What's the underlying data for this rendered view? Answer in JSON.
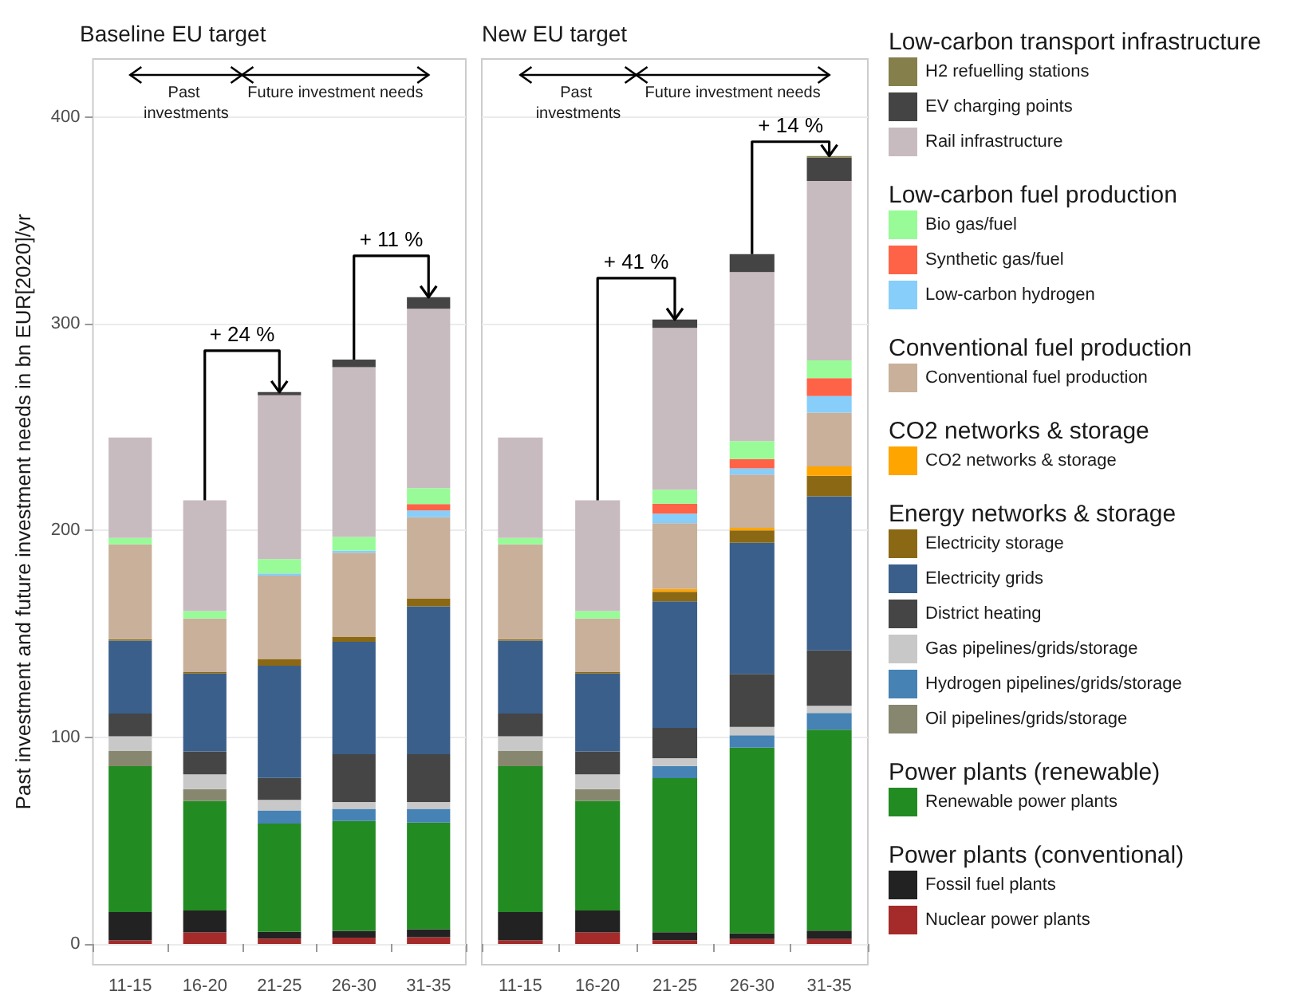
{
  "chart_data": [
    {
      "type": "bar",
      "title": "Baseline EU target",
      "ylabel": "Past investment and future investment needs in bn EUR[2020]/yr",
      "categories": [
        "11-15",
        "16-20",
        "21-25",
        "26-30",
        "31-35"
      ],
      "stacked": true,
      "ylim": [
        -10,
        428
      ],
      "yticks": [
        0,
        100,
        200,
        300,
        400
      ],
      "grid": true,
      "legend": false,
      "annotations": [
        "Past investments",
        "Future investment needs",
        {
          "text": "+ 24 %",
          "x": "21-25",
          "y": 266.9
        },
        {
          "text": "+ 11 %",
          "x": "31-35",
          "y": 312.8
        }
      ],
      "series": [
        {
          "color": "#a52a2a",
          "values": [
            1.8,
            5.6,
            2.6,
            3.1,
            3.3
          ]
        },
        {
          "color": "#222222",
          "values": [
            13.6,
            10.6,
            3.3,
            3.3,
            3.9
          ]
        },
        {
          "color": "#228b22",
          "values": [
            70.6,
            53,
            52.3,
            53.1,
            51.5
          ]
        },
        {
          "color": "#878770",
          "values": [
            7.3,
            5.7,
            0,
            0,
            0
          ]
        },
        {
          "color": "#4682b4",
          "values": [
            0,
            0,
            6.4,
            5.9,
            6.7
          ]
        },
        {
          "color": "#c8c8c8",
          "values": [
            7.2,
            7.2,
            5.1,
            3.3,
            3.3
          ]
        },
        {
          "color": "#454545",
          "values": [
            11,
            11,
            10.6,
            23.1,
            23.1
          ]
        },
        {
          "color": "#3a5f8a",
          "values": [
            35.2,
            37.7,
            54.3,
            54.4,
            71.5
          ]
        },
        {
          "color": "#8b6914",
          "values": [
            0.7,
            0.7,
            3.3,
            2.5,
            3.9
          ]
        },
        {
          "color": "#ffa500",
          "values": [
            0,
            0,
            0,
            0,
            0
          ]
        },
        {
          "color": "#c8b09a",
          "values": [
            45.9,
            25.9,
            40.3,
            40.5,
            39.2
          ]
        },
        {
          "color": "#87cefa",
          "values": [
            0,
            0,
            1,
            1.1,
            3.3
          ]
        },
        {
          "color": "#ff6347",
          "values": [
            0,
            0,
            0,
            0,
            3.1
          ]
        },
        {
          "color": "#98fb98",
          "values": [
            3.1,
            3.6,
            7,
            6.6,
            7.7
          ]
        },
        {
          "color": "#c8bbbf",
          "values": [
            48.6,
            53.6,
            79.2,
            82.1,
            86.7
          ]
        },
        {
          "color": "#444444",
          "values": [
            0,
            0,
            1.5,
            3.6,
            5.6
          ]
        },
        {
          "color": "#857f4c",
          "values": [
            0,
            0,
            0,
            0,
            0
          ]
        }
      ]
    },
    {
      "type": "bar",
      "title": "New EU target",
      "categories": [
        "11-15",
        "16-20",
        "21-25",
        "26-30",
        "31-35"
      ],
      "stacked": true,
      "ylim": [
        -10,
        428
      ],
      "yticks": [
        0,
        100,
        200,
        300,
        400
      ],
      "grid": true,
      "legend": "right",
      "tick_labels": "x",
      "annotations": [
        "Past investments",
        "Future investment needs",
        {
          "text": "+ 41 %",
          "x": "21-25",
          "y": 302
        },
        {
          "text": "+ 14 %",
          "x": "31-35",
          "y": 381.1
        },
        "Low-carbon transport infrastructure",
        "Low-carbon fuel production",
        "Conventional fuel production",
        "CO2 networks & storage",
        "Energy networks & storage",
        "Power plants (renewable)",
        "Power plants (conventional)"
      ],
      "series": [
        {
          "name": "Nuclear power plants",
          "color": "#a52a2a",
          "values": [
            1.8,
            5.6,
            1.9,
            2.4,
            2.4
          ]
        },
        {
          "name": "Fossil fuel plants",
          "color": "#222222",
          "values": [
            13.6,
            10.6,
            3.8,
            2.7,
            4.1
          ]
        },
        {
          "name": "Renewable power plants",
          "color": "#228b22",
          "values": [
            70.6,
            53,
            74.5,
            89.9,
            97.1
          ]
        },
        {
          "name": "Oil pipelines/grids/storage",
          "color": "#878770",
          "values": [
            7.3,
            5.7,
            0,
            0,
            0
          ]
        },
        {
          "name": "Hydrogen pipelines/grids/storage",
          "color": "#4682b4",
          "values": [
            0,
            0,
            5.9,
            5.9,
            8.1
          ]
        },
        {
          "name": "Gas pipelines/grids/storage",
          "color": "#c8c8c8",
          "values": [
            7.2,
            7.2,
            3.8,
            4.1,
            3.5
          ]
        },
        {
          "name": "District heating",
          "color": "#454545",
          "values": [
            11,
            11,
            14.6,
            25.6,
            26.8
          ]
        },
        {
          "name": "Electricity grids",
          "color": "#3a5f8a",
          "values": [
            35.2,
            37.7,
            61.2,
            63.5,
            74.5
          ]
        },
        {
          "name": "Electricity storage",
          "color": "#8b6914",
          "values": [
            0.7,
            0.7,
            4.6,
            5.9,
            9.9
          ]
        },
        {
          "name": "CO2 networks & storage",
          "color": "#ffa500",
          "values": [
            0,
            0,
            1.4,
            1.3,
            4.6
          ]
        },
        {
          "name": "Conventional fuel production",
          "color": "#c8b09a",
          "values": [
            45.9,
            25.9,
            31.8,
            25.7,
            26
          ]
        },
        {
          "name": "Low-carbon hydrogen",
          "color": "#87cefa",
          "values": [
            0,
            0,
            4.6,
            3,
            8
          ]
        },
        {
          "name": "Synthetic gas/fuel",
          "color": "#ff6347",
          "values": [
            0,
            0,
            4.9,
            4.5,
            8.7
          ]
        },
        {
          "name": "Bio gas/fuel",
          "color": "#98fb98",
          "values": [
            3.1,
            3.6,
            6.7,
            8.7,
            8.6
          ]
        },
        {
          "name": "Rail infrastructure",
          "color": "#c8bbbf",
          "values": [
            48.6,
            53.6,
            78.3,
            81.8,
            86.7
          ]
        },
        {
          "name": "EV charging points",
          "color": "#444444",
          "values": [
            0,
            0,
            4,
            8.6,
            11.3
          ]
        },
        {
          "name": "H2 refuelling stations",
          "color": "#857f4c",
          "values": [
            0,
            0,
            0,
            0,
            0.8
          ]
        }
      ]
    }
  ]
}
